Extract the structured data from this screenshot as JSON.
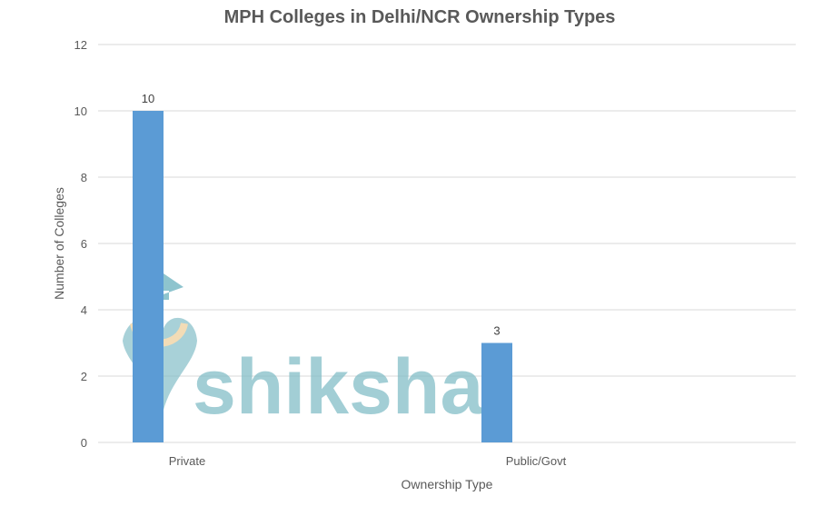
{
  "chart_data": {
    "type": "bar",
    "title": "MPH Colleges in Delhi/NCR  Ownership Types",
    "xlabel": "Ownership Type",
    "ylabel": "Number of Colleges",
    "categories": [
      "Private",
      "Public/Govt"
    ],
    "values": [
      10,
      3
    ],
    "data_labels": [
      "10",
      "3"
    ],
    "ylim": [
      0,
      12
    ],
    "yticks": [
      0,
      2,
      4,
      6,
      8,
      10,
      12
    ],
    "grid": true,
    "legend": "none",
    "bar_color": "#5b9bd5"
  },
  "watermark": {
    "text": "shiksha",
    "color": "#7fbcc6"
  }
}
